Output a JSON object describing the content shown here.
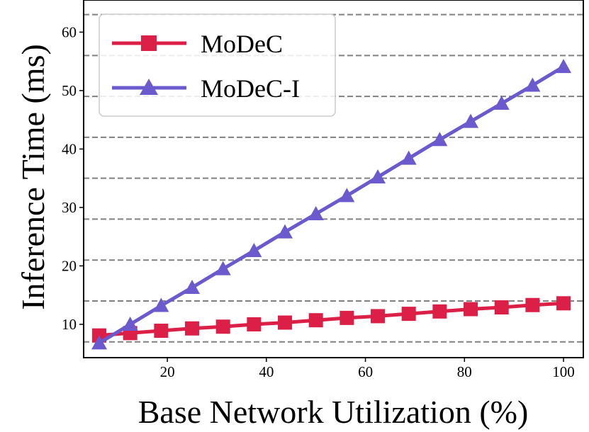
{
  "chart_data": {
    "type": "line",
    "xlabel": "Base Network Utilization (%)",
    "ylabel": "Inference Time (ms)",
    "xlim": [
      3.1,
      104
    ],
    "ylim": [
      4.3,
      65.5
    ],
    "xticks": [
      20,
      40,
      60,
      80,
      100
    ],
    "yticks": [
      10,
      20,
      30,
      40,
      50,
      60
    ],
    "grid": "horizontal-dashed",
    "grid_y": [
      7,
      14,
      21,
      28,
      35,
      42,
      49,
      56,
      63
    ],
    "legend": "top-left",
    "series": [
      {
        "name": "MoDeC",
        "color": "#dc1f46",
        "marker": "square",
        "x": [
          6.25,
          12.5,
          18.75,
          25,
          31.25,
          37.5,
          43.75,
          50,
          56.25,
          62.5,
          68.75,
          75,
          81.25,
          87.5,
          93.75,
          100
        ],
        "values": [
          8.1,
          8.5,
          8.9,
          9.3,
          9.6,
          10.0,
          10.3,
          10.7,
          11.1,
          11.4,
          11.8,
          12.2,
          12.6,
          12.9,
          13.3,
          13.6
        ]
      },
      {
        "name": "MoDeC-I",
        "color": "#6a5acd",
        "marker": "triangle",
        "x": [
          6.25,
          12.5,
          18.75,
          25,
          31.25,
          37.5,
          43.75,
          50,
          56.25,
          62.5,
          68.75,
          75,
          81.25,
          87.5,
          93.75,
          100
        ],
        "values": [
          6.8,
          10.0,
          13.2,
          16.3,
          19.5,
          22.6,
          25.8,
          28.9,
          32.0,
          35.2,
          38.4,
          41.6,
          44.7,
          47.8,
          50.9,
          54.1
        ]
      }
    ]
  }
}
